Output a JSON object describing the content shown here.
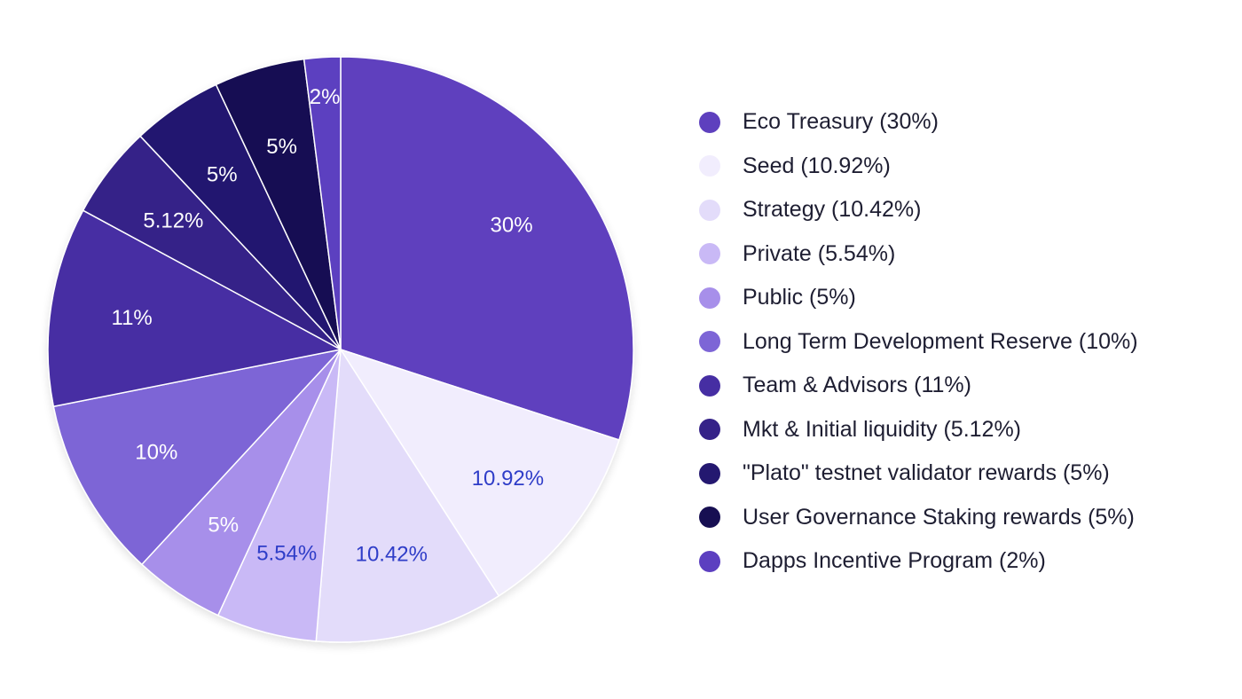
{
  "chart_data": {
    "type": "pie",
    "title": "",
    "legend_position": "right",
    "start_angle_deg": 0,
    "direction": "clockwise",
    "slices": [
      {
        "name": "Eco Treasury (30%)",
        "value": 30,
        "label": "30%",
        "color": "#5e40be",
        "label_color": "#ffffff"
      },
      {
        "name": "Seed (10.92%)",
        "value": 10.92,
        "label": "10.92%",
        "color": "#f1edfd",
        "label_color": "#2f3dc8"
      },
      {
        "name": "Strategy (10.42%)",
        "value": 10.42,
        "label": "10.42%",
        "color": "#e3dcfa",
        "label_color": "#2f3dc8"
      },
      {
        "name": "Private (5.54%)",
        "value": 5.54,
        "label": "5.54%",
        "color": "#c9b9f6",
        "label_color": "#2f3dc8"
      },
      {
        "name": "Public (5%)",
        "value": 5,
        "label": "5%",
        "color": "#a78fea",
        "label_color": "#ffffff"
      },
      {
        "name": "Long Term Development Reserve (10%)",
        "value": 10,
        "label": "10%",
        "color": "#7d65d6",
        "label_color": "#ffffff"
      },
      {
        "name": "Team & Advisors (11%)",
        "value": 11,
        "label": "11%",
        "color": "#462ea3",
        "label_color": "#ffffff"
      },
      {
        "name": "Mkt & Initial liquidity (5.12%)",
        "value": 5.12,
        "label": "5.12%",
        "color": "#352288",
        "label_color": "#ffffff"
      },
      {
        "name": "\"Plato\" testnet validator rewards (5%)",
        "value": 5,
        "label": "5%",
        "color": "#241870",
        "label_color": "#ffffff"
      },
      {
        "name": "User Governance Staking rewards (5%)",
        "value": 5,
        "label": "5%",
        "color": "#170f52",
        "label_color": "#ffffff"
      },
      {
        "name": "Dapps Incentive Program (2%)",
        "value": 2,
        "label": "2%",
        "color": "#5c3fc0",
        "label_color": "#ffffff"
      }
    ]
  }
}
